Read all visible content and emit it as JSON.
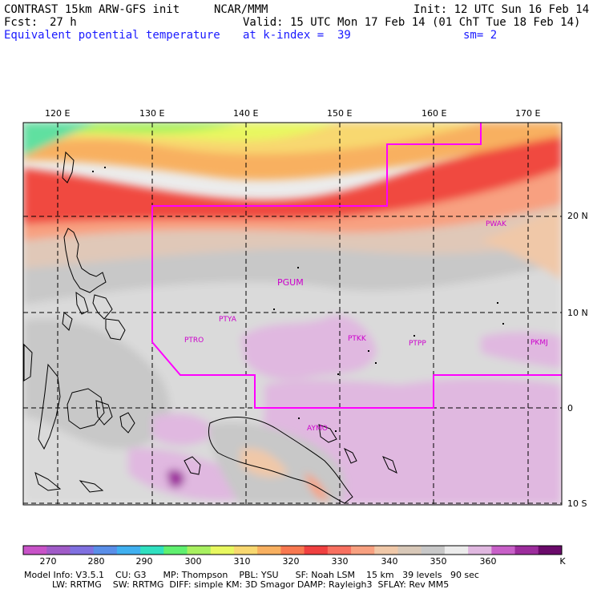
{
  "header": {
    "model": "CONTRAST 15km ARW-GFS init",
    "org": "NCAR/MMM",
    "init": "Init: 12 UTC Sun 16 Feb 14",
    "fcst_label": "Fcst:",
    "fcst_value": "27 h",
    "valid": "Valid: 15 UTC Mon 17 Feb 14 (01 ChT Tue 18 Feb 14)",
    "field": "Equivalent potential temperature",
    "level": "at k-index =  39",
    "smooth": "sm= 2"
  },
  "map": {
    "lon_labels": [
      "120 E",
      "130 E",
      "140 E",
      "150 E",
      "160 E",
      "170 E"
    ],
    "lat_labels": [
      "20 N",
      "10 N",
      "0",
      "10 S"
    ],
    "stations": [
      {
        "id": "PWAK",
        "name": "PWAK"
      },
      {
        "id": "PGUM",
        "name": "PGUM"
      },
      {
        "id": "PTYA",
        "name": "PTYA"
      },
      {
        "id": "PTRO",
        "name": "PTRO"
      },
      {
        "id": "PTKK",
        "name": "PTKK"
      },
      {
        "id": "PTPN",
        "name": "PTPP"
      },
      {
        "id": "PKMJ",
        "name": "PKMJ"
      },
      {
        "id": "AYMO",
        "name": "AYMO"
      }
    ],
    "boundary_color": "#ff00ff",
    "station_color": "#cc00cc"
  },
  "colorbar": {
    "colors": [
      "#c853c8",
      "#a05bc8",
      "#8070e0",
      "#5a8ee8",
      "#40b0f0",
      "#30e0c0",
      "#60f070",
      "#a8f060",
      "#e8f860",
      "#f8d870",
      "#f8b060",
      "#f87850",
      "#f04040",
      "#f87060",
      "#f8a080",
      "#f0c8a8",
      "#d8c8b8",
      "#c8c8c8",
      "#ececec",
      "#e0b8e0",
      "#c860c8",
      "#9c2c9c",
      "#6a0a6a"
    ],
    "labels": [
      "270",
      "280",
      "290",
      "300",
      "310",
      "320",
      "330",
      "340",
      "350",
      "360"
    ],
    "unit": "K"
  },
  "model_info": {
    "line1": "Model Info: V3.5.1    CU: G3      MP: Thompson    PBL: YSU      SF: Noah LSM    15 km   39 levels   90 sec",
    "line2": "          LW: RRTMG    SW: RRTMG  DIFF: simple KM: 3D Smagor DAMP: Rayleigh3  SFLAY: Rev MM5"
  }
}
